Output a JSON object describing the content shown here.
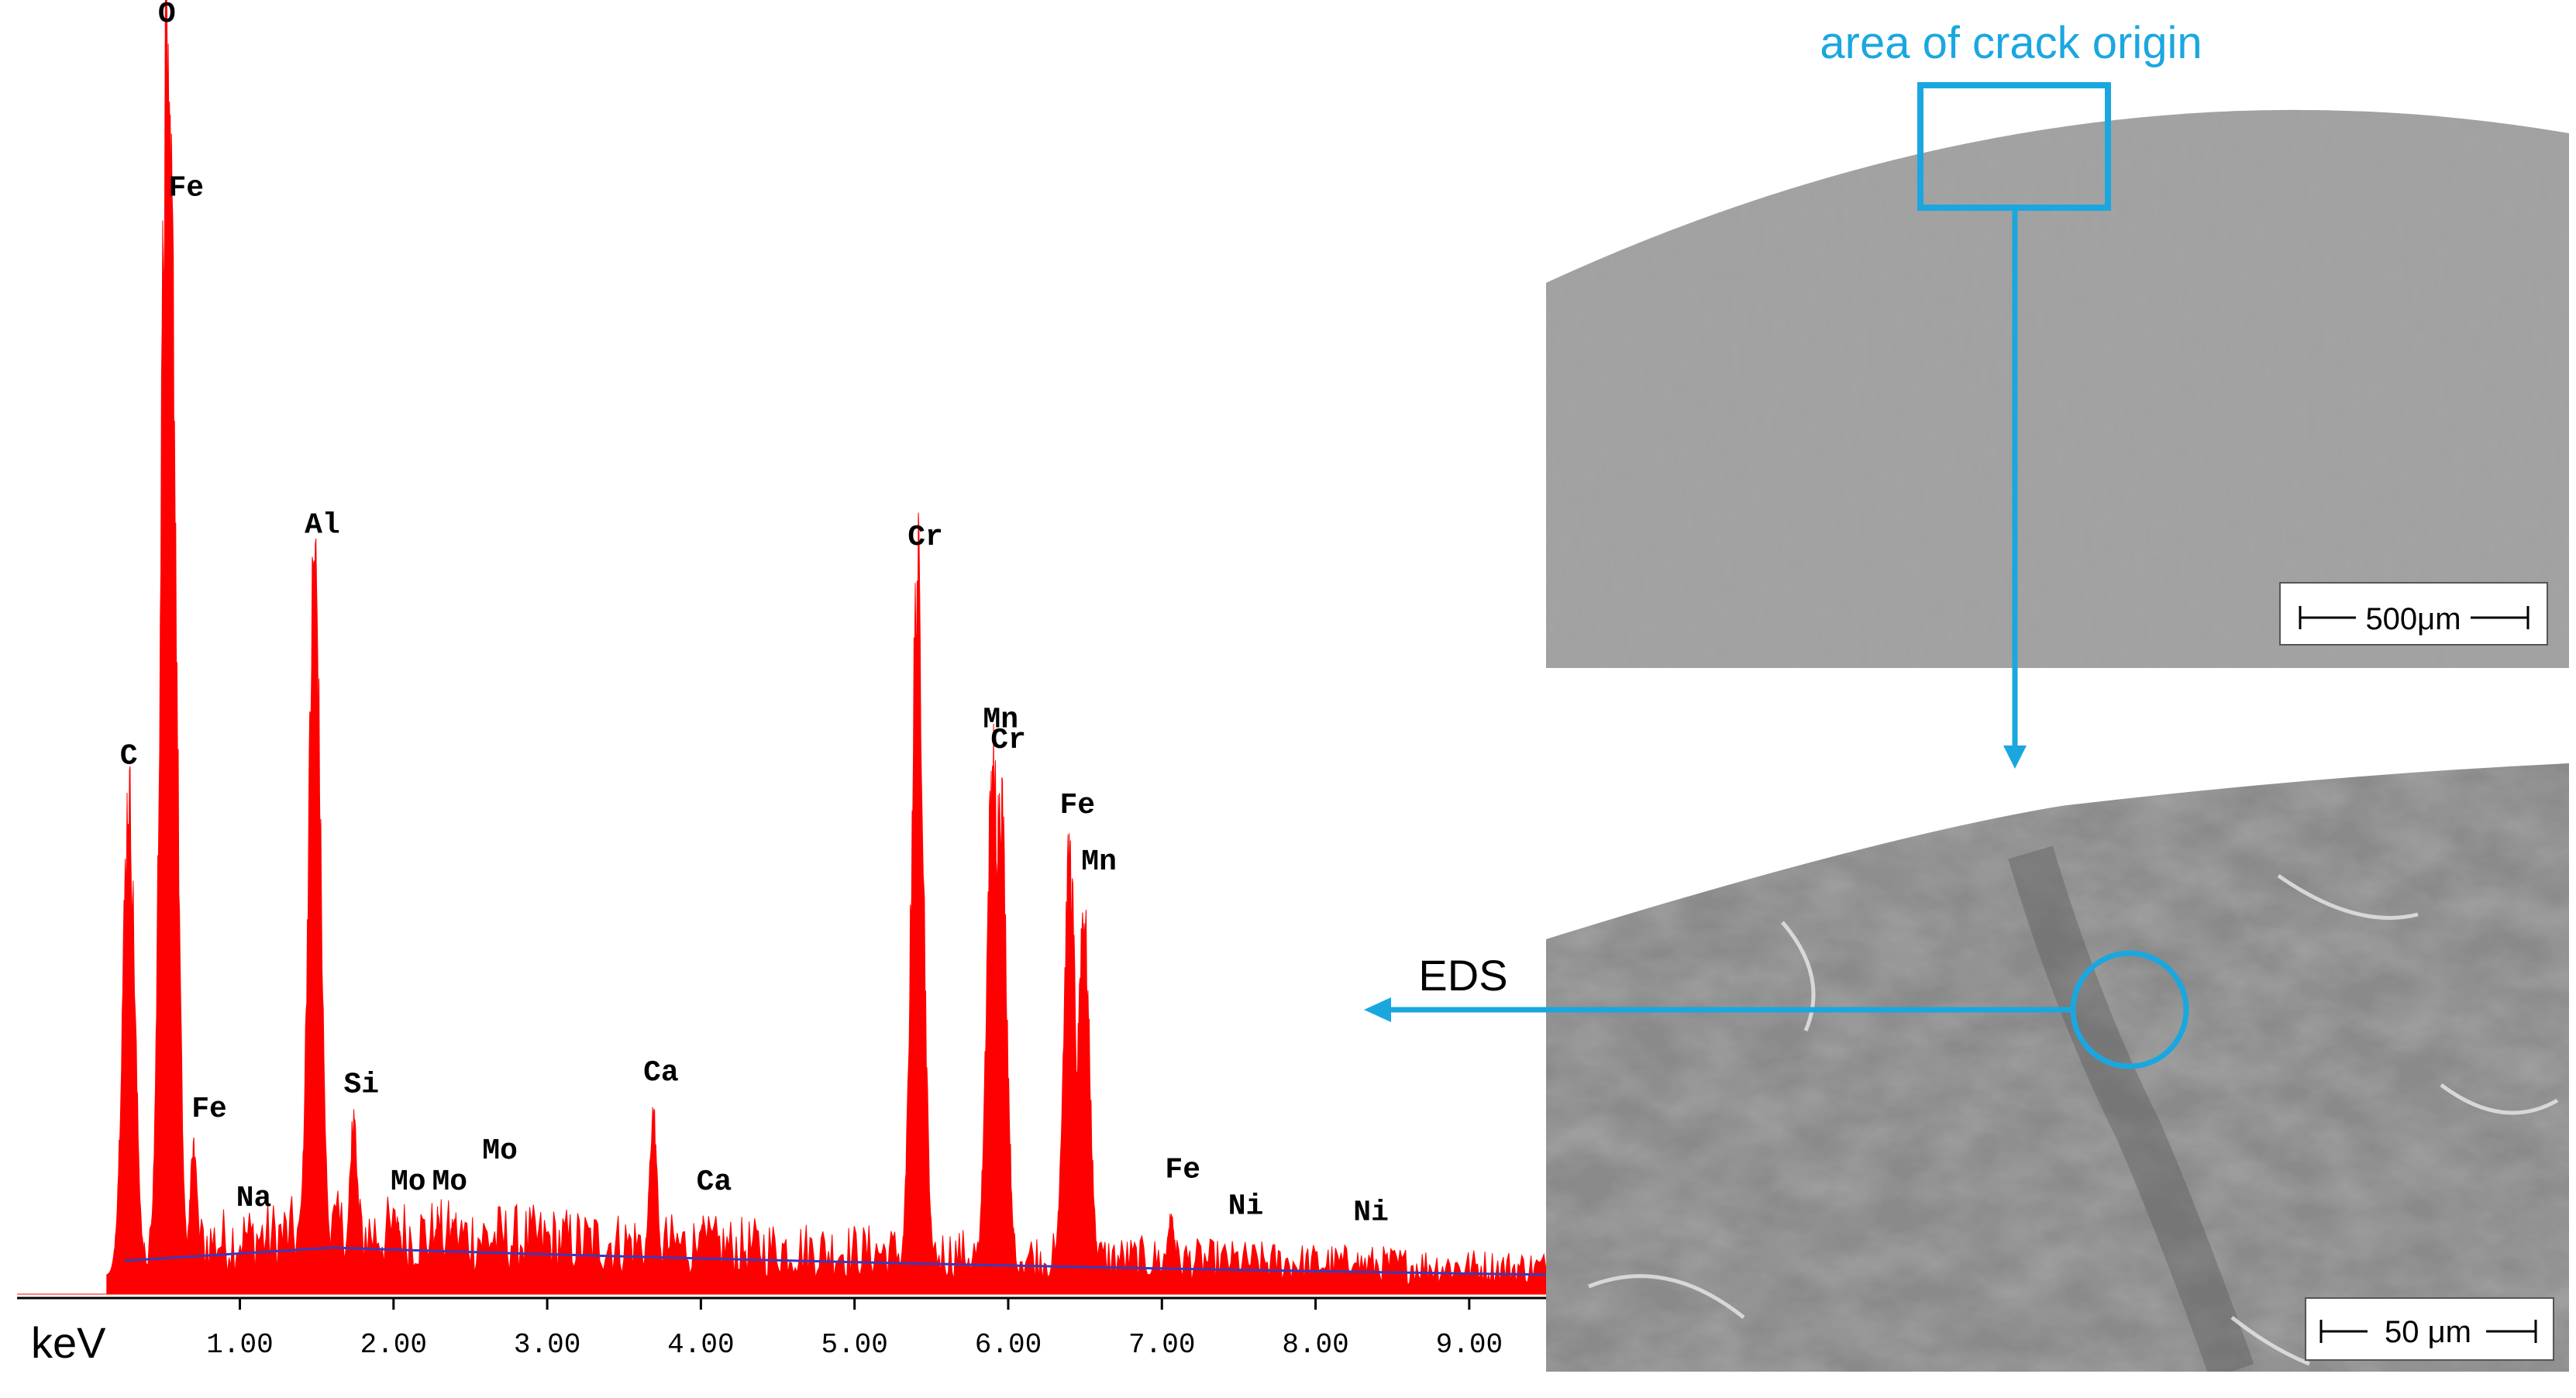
{
  "chart_data": {
    "type": "bar",
    "xlabel": "keV",
    "xlim": [
      -0.45,
      9.5
    ],
    "ylim": [
      0,
      1.0
    ],
    "tick_labels": [
      "1.00",
      "2.00",
      "3.00",
      "4.00",
      "5.00",
      "6.00",
      "7.00",
      "8.00",
      "9.00"
    ],
    "tick_values": [
      1,
      2,
      3,
      4,
      5,
      6,
      7,
      8,
      9
    ],
    "peaks": [
      {
        "element": "C",
        "x": 0.277,
        "height": 0.39
      },
      {
        "element": "O",
        "x": 0.525,
        "height": 1.0
      },
      {
        "element": "Fe",
        "x": 0.55,
        "height": 0.86
      },
      {
        "element": "Fe",
        "x": 0.7,
        "height": 0.1
      },
      {
        "element": "Na",
        "x": 1.04,
        "height": 0.03
      },
      {
        "element": "Al",
        "x": 1.486,
        "height": 0.58
      },
      {
        "element": "Si",
        "x": 1.74,
        "height": 0.12
      },
      {
        "element": "Mo",
        "x": 2.02,
        "height": 0.04
      },
      {
        "element": "Mo",
        "x": 2.29,
        "height": 0.04
      },
      {
        "element": "Mo",
        "x": 2.39,
        "height": 0.04
      },
      {
        "element": "Ca",
        "x": 3.69,
        "height": 0.13
      },
      {
        "element": "Ca",
        "x": 4.01,
        "height": 0.04
      },
      {
        "element": "Cr",
        "x": 5.41,
        "height": 0.57
      },
      {
        "element": "Mn",
        "x": 5.9,
        "height": 0.42
      },
      {
        "element": "Cr",
        "x": 5.95,
        "height": 0.4
      },
      {
        "element": "Fe",
        "x": 6.4,
        "height": 0.34
      },
      {
        "element": "Mn",
        "x": 6.49,
        "height": 0.3
      },
      {
        "element": "Fe",
        "x": 7.06,
        "height": 0.05
      },
      {
        "element": "Ni",
        "x": 7.47,
        "height": 0.02
      },
      {
        "element": "Ni",
        "x": 8.26,
        "height": 0.015
      }
    ],
    "colors": {
      "spectrum": "#ff0000",
      "background": "#3a3ab8",
      "annotation": "#1aa7e0"
    }
  },
  "annotations": {
    "crack_origin": "area of crack origin",
    "eds": "EDS",
    "scale_top": "500μm",
    "scale_bottom": "50 μm"
  }
}
